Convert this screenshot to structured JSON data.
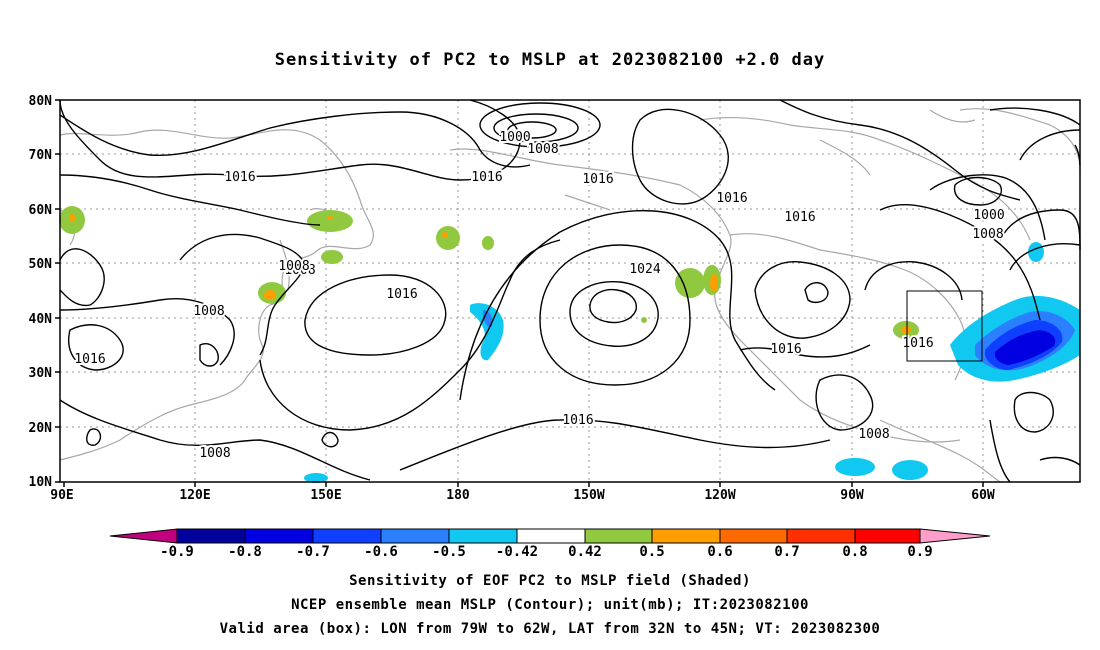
{
  "title": "Sensitivity of PC2 to MSLP at 2023082100 +2.0 day",
  "map": {
    "lat_labels": [
      "80N",
      "70N",
      "60N",
      "50N",
      "40N",
      "30N",
      "20N",
      "10N"
    ],
    "lon_labels": [
      "90E",
      "120E",
      "150E",
      "180",
      "150W",
      "120W",
      "90W",
      "60W"
    ],
    "contour_labels": [
      "1016",
      "1008",
      "1000",
      "1008",
      "1016",
      "1016",
      "1016",
      "1016",
      "1008",
      "1008",
      "1016",
      "1024",
      "1016",
      "1016",
      "1008",
      "1016",
      "1000",
      "1008",
      "1016",
      "1016",
      "1008"
    ],
    "valid_box_label": "Valid area (box)"
  },
  "colorbar": {
    "tick_labels": [
      "-0.9",
      "-0.8",
      "-0.7",
      "-0.6",
      "-0.5",
      "-0.42",
      "0.42",
      "0.5",
      "0.6",
      "0.7",
      "0.8",
      "0.9"
    ],
    "colors": [
      "#c0007f",
      "#00009c",
      "#0000e0",
      "#1040ff",
      "#2a80ff",
      "#10c8f0",
      "#ffffff",
      "#90c840",
      "#ff9e00",
      "#ff6a00",
      "#ff3000",
      "#ff0000",
      "#ff9ec8"
    ]
  },
  "footer": {
    "line1": "Sensitivity of EOF PC2 to MSLP field (Shaded)",
    "line2": "NCEP ensemble mean MSLP (Contour); unit(mb); IT:2023082100",
    "line3": "Valid area (box): LON from 79W to 62W, LAT from 32N to 45N; VT: 2023082300"
  }
}
